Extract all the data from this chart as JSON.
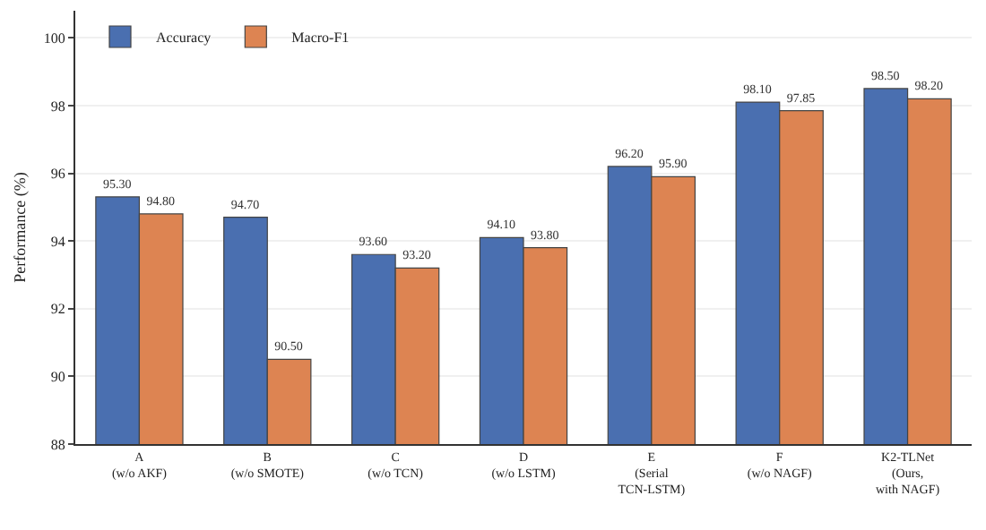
{
  "chart_data": {
    "type": "bar",
    "ylabel": "Performance (%)",
    "categories": [
      "A\n(w/o AKF)",
      "B\n(w/o SMOTE)",
      "C\n(w/o TCN)",
      "D\n(w/o LSTM)",
      "E\n(Serial\nTCN-LSTM)",
      "F\n(w/o NAGF)",
      "K2-TLNet\n(Ours,\nwith NAGF)"
    ],
    "series": [
      {
        "name": "Accuracy",
        "color": "#4a6fb0",
        "values": [
          95.3,
          94.7,
          93.6,
          94.1,
          96.2,
          98.1,
          98.5
        ],
        "value_labels": [
          "95.30",
          "94.70",
          "93.60",
          "94.10",
          "96.20",
          "98.10",
          "98.50"
        ]
      },
      {
        "name": "Macro-F1",
        "color": "#dd8452",
        "values": [
          94.8,
          90.5,
          93.2,
          93.8,
          95.9,
          97.85,
          98.2
        ],
        "value_labels": [
          "94.80",
          "90.50",
          "93.20",
          "93.80",
          "95.90",
          "97.85",
          "98.20"
        ]
      }
    ],
    "ylim": [
      88,
      100.8
    ],
    "yticks": [
      88,
      90,
      92,
      94,
      96,
      98,
      100
    ],
    "grid": "y",
    "legend": "top left"
  }
}
